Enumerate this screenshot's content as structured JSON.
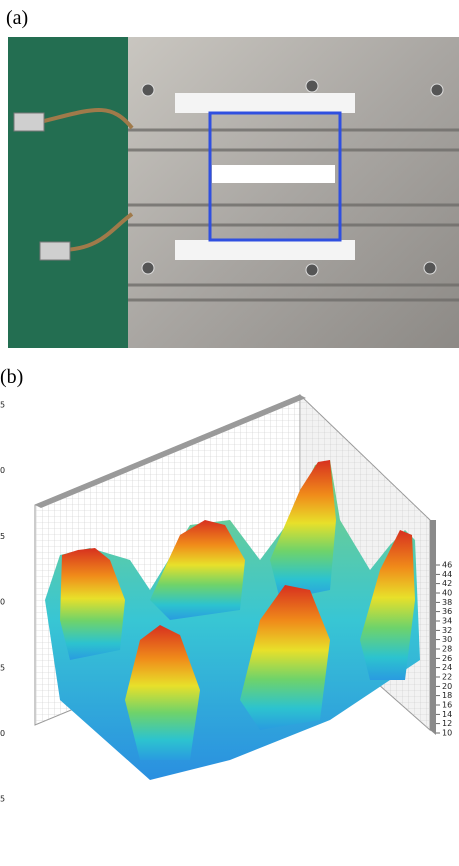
{
  "panel_a": {
    "label": "(a)"
  },
  "panel_b": {
    "label": "(b)",
    "left_axis_labels": [
      "5",
      "0",
      "5",
      "0",
      "5",
      "0",
      "5"
    ],
    "right_axis_ticks": [
      46,
      44,
      42,
      40,
      38,
      36,
      34,
      32,
      30,
      28,
      26,
      24,
      22,
      20,
      18,
      16,
      14,
      12,
      10
    ]
  }
}
